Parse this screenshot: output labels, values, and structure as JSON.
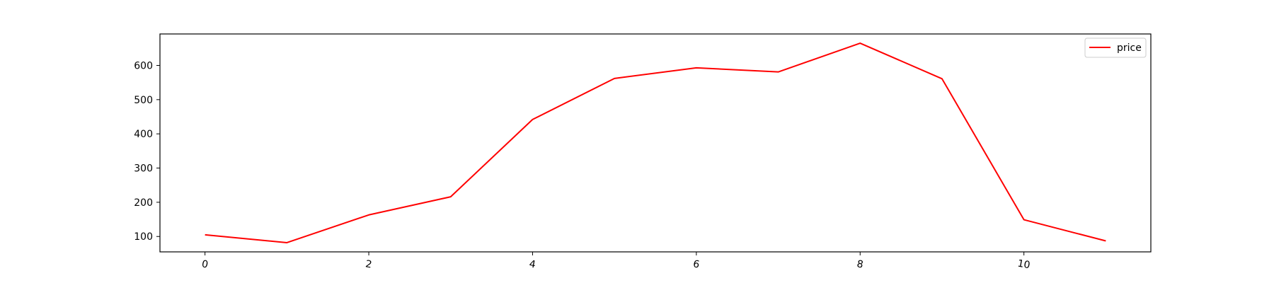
{
  "chart_data": {
    "type": "line",
    "title": "",
    "xlabel": "",
    "ylabel": "",
    "x": [
      0,
      1,
      2,
      3,
      4,
      5,
      6,
      7,
      8,
      9,
      10,
      11
    ],
    "series": [
      {
        "name": "price",
        "color": "#ff0000",
        "values": [
          105,
          82,
          163,
          216,
          442,
          562,
          593,
          581,
          665,
          561,
          149,
          87
        ]
      }
    ],
    "xlim": [
      -0.55,
      11.55
    ],
    "ylim": [
      55,
      692
    ],
    "xticks": [
      0,
      2,
      4,
      6,
      8,
      10
    ],
    "xtick_labels": [
      "0",
      "2",
      "4",
      "6",
      "8",
      "10"
    ],
    "xtick_rotation": 10,
    "yticks": [
      100,
      200,
      300,
      400,
      500,
      600
    ],
    "ytick_labels": [
      "100",
      "200",
      "300",
      "400",
      "500",
      "600"
    ],
    "grid": false,
    "legend_position": "top-right",
    "legend_labels": [
      "price"
    ]
  }
}
